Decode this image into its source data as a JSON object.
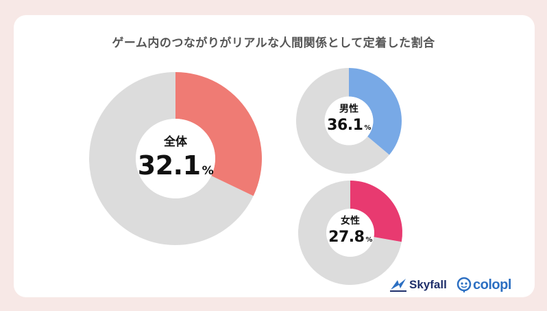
{
  "title": "ゲーム内のつながりがリアルな人間関係として定着した割合",
  "colors": {
    "background": "#f7e8e6",
    "track": "#dcdcdc",
    "overall": "#ef7b74",
    "male": "#78a9e6",
    "female": "#e83a70"
  },
  "chart_data": [
    {
      "type": "pie",
      "name": "全体",
      "value": 32.1,
      "value_label": "32.1",
      "unit": "%",
      "color": "#ef7b74"
    },
    {
      "type": "pie",
      "name": "男性",
      "value": 36.1,
      "value_label": "36.1",
      "unit": "%",
      "color": "#78a9e6"
    },
    {
      "type": "pie",
      "name": "女性",
      "value": 27.8,
      "value_label": "27.8",
      "unit": "%",
      "color": "#e83a70"
    }
  ],
  "logos": {
    "skyfall": "Skyfall",
    "colopl": "colopl",
    "skyfall_icon": "skyfall-mark-icon",
    "colopl_icon": "colopl-mascot-icon"
  }
}
